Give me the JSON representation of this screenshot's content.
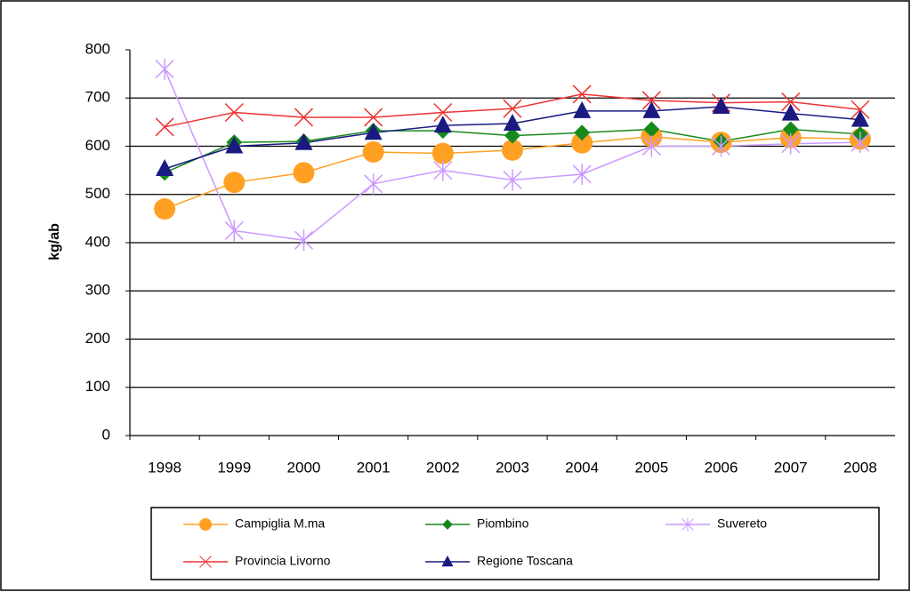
{
  "chart_data": {
    "type": "line",
    "y_label": "kg/ab",
    "categories": [
      "1998",
      "1999",
      "2000",
      "2001",
      "2002",
      "2003",
      "2004",
      "2005",
      "2006",
      "2007",
      "2008"
    ],
    "series": [
      {
        "name": "Campiglia M.ma",
        "color": "#ffa023",
        "marker": "circle",
        "values": [
          470,
          525,
          545,
          588,
          585,
          592,
          607,
          620,
          608,
          618,
          615
        ]
      },
      {
        "name": "Piombino",
        "color": "#17891a",
        "marker": "diamond",
        "values": [
          545,
          608,
          610,
          632,
          632,
          622,
          628,
          635,
          610,
          635,
          625
        ]
      },
      {
        "name": "Suvereto",
        "color": "#cc99ff",
        "marker": "asterisk",
        "values": [
          760,
          425,
          405,
          522,
          550,
          530,
          542,
          600,
          600,
          605,
          608
        ]
      },
      {
        "name": "Provincia Livorno",
        "color": "#ee3333",
        "marker": "x",
        "values": [
          640,
          670,
          660,
          660,
          670,
          678,
          708,
          695,
          690,
          692,
          676
        ]
      },
      {
        "name": "Regione Toscana",
        "color": "#1a1a80",
        "marker": "triangle",
        "values": [
          553,
          600,
          607,
          628,
          643,
          647,
          673,
          673,
          682,
          668,
          655
        ]
      }
    ],
    "ylim": [
      0,
      800
    ],
    "yticks": [
      0,
      100,
      200,
      300,
      400,
      500,
      600,
      700,
      800
    ],
    "grid": true
  }
}
